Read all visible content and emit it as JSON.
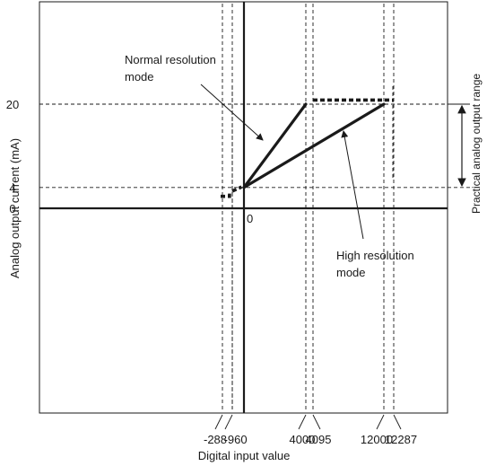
{
  "chart_data": {
    "type": "line",
    "title": "",
    "xlabel": "Digital input value",
    "ylabel": "Analog output current (mA)",
    "x_tick_labels": [
      {
        "value": -288,
        "label": "-288"
      },
      {
        "value": -96,
        "label": "-96"
      },
      {
        "value": 0,
        "label": "0"
      },
      {
        "value": 4000,
        "label": "4000"
      },
      {
        "value": 4095,
        "label": "4095"
      },
      {
        "value": 12000,
        "label": "12000"
      },
      {
        "value": 12287,
        "label": "12287"
      }
    ],
    "y_tick_labels": [
      {
        "value": 20,
        "label": "20"
      },
      {
        "value": 4,
        "label": "4"
      },
      {
        "value": 0,
        "label": "0"
      }
    ],
    "origin_label": "0",
    "series": [
      {
        "name": "Normal resolution mode",
        "name_lines": [
          "Normal resolution",
          "mode"
        ],
        "style": "solid",
        "points": [
          [
            0,
            4
          ],
          [
            4000,
            20
          ]
        ]
      },
      {
        "name": "High resolution mode",
        "name_lines": [
          "High resolution",
          "mode"
        ],
        "style": "solid",
        "points": [
          [
            0,
            4
          ],
          [
            12000,
            20
          ]
        ]
      }
    ],
    "dashed_segments": [
      {
        "points": [
          [
            -300,
            2.3
          ],
          [
            -150,
            2.3
          ],
          [
            -150,
            2.9
          ],
          [
            -96,
            2.9
          ]
        ]
      },
      {
        "points": [
          [
            -96,
            3.3
          ],
          [
            -20,
            4.1
          ]
        ]
      },
      {
        "points": [
          [
            4095,
            20.8
          ],
          [
            12287,
            20.8
          ],
          [
            12287,
            20.8
          ]
        ]
      }
    ],
    "annotation": {
      "label": "Practical analog output range",
      "range": [
        4,
        20
      ]
    },
    "grid": false,
    "colors": {
      "line": "#1a1a1a",
      "dashed": "#1a1a1a",
      "background": "#ffffff"
    }
  }
}
